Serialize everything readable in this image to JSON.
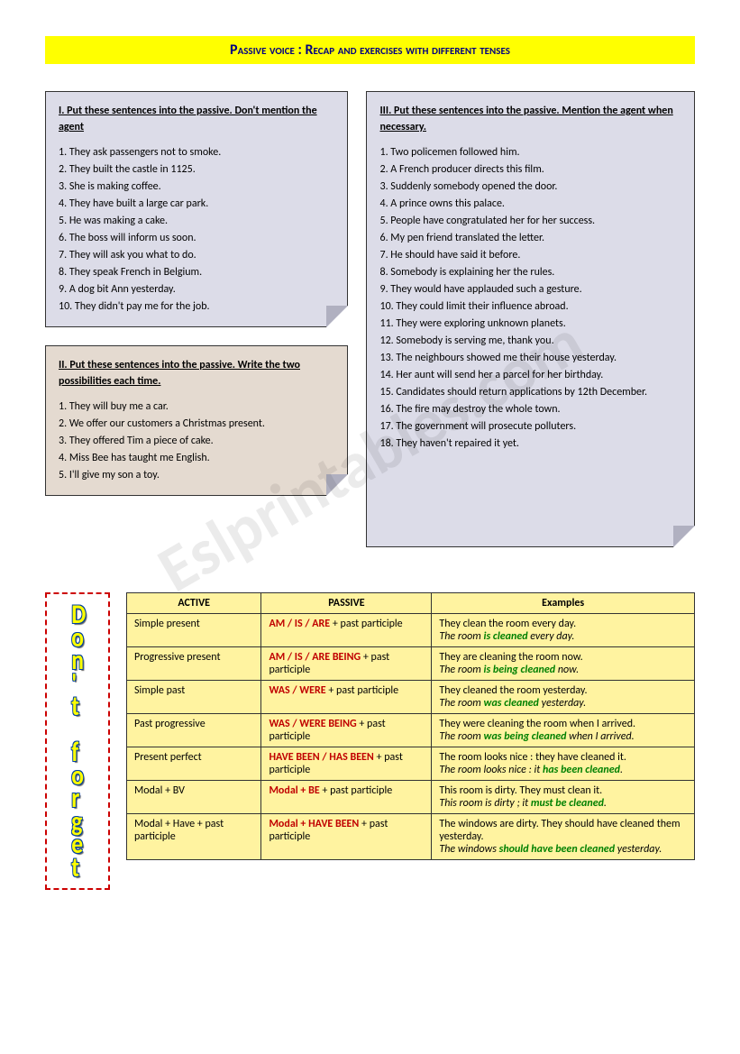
{
  "title": "Passive voice : Recap and exercises with different tenses",
  "watermark": "Eslprintables.com",
  "dont_forget": "Don't forget",
  "exercise1": {
    "header": "I. Put these sentences into the passive. Don't mention the agent",
    "items": [
      "1. They ask passengers not to smoke.",
      "2. They built the castle in 1125.",
      "3. She is making coffee.",
      "4. They have built a large car park.",
      "5. He was making a cake.",
      "6. The boss will inform us soon.",
      "7. They will ask you what to do.",
      "8. They speak French in Belgium.",
      "9. A dog bit Ann yesterday.",
      "10. They didn't pay me for the job."
    ]
  },
  "exercise2": {
    "header": "II. Put these sentences into the passive. Write the two possibilities each time.",
    "items": [
      "1. They will buy me a car.",
      "2. We offer our customers a Christmas present.",
      "3. They offered Tim a piece of cake.",
      "4. Miss Bee has taught me English.",
      "5. I'll give my son a toy."
    ]
  },
  "exercise3": {
    "header": "III. Put these sentences into the passive. Mention the agent when necessary.",
    "items": [
      "1. Two policemen followed him.",
      "2. A French producer directs this film.",
      "3. Suddenly somebody opened the door.",
      "4. A prince owns this palace.",
      "5. People have congratulated her for her success.",
      "6. My pen friend translated the letter.",
      "7. He should have said it before.",
      "8. Somebody is explaining her the rules.",
      "9. They would have applauded such a gesture.",
      "10. They could limit their influence abroad.",
      "11. They were exploring unknown planets.",
      "12. Somebody is serving me, thank you.",
      "13. The neighbours showed me their house yesterday.",
      "14. Her aunt will send her a parcel for her birthday.",
      "15. Candidates should return applications by 12th December.",
      "16. The fire may destroy the whole town.",
      "17. The government will prosecute polluters.",
      "18. They haven't repaired it yet."
    ]
  },
  "table": {
    "headers": {
      "active": "ACTIVE",
      "passive": "PASSIVE",
      "examples": "Examples"
    },
    "rows": [
      {
        "active": "Simple present",
        "passive_red": "AM / IS / ARE",
        "passive_rest": " + past participle",
        "ex_active": "They clean the room every day.",
        "ex_passive_pre": "The room ",
        "ex_passive_green": "is cleaned",
        "ex_passive_post": " every day."
      },
      {
        "active": "Progressive present",
        "passive_red": "AM / IS / ARE  BEING",
        "passive_rest": " + past participle",
        "ex_active": "They are cleaning the room now.",
        "ex_passive_pre": "The room ",
        "ex_passive_green": "is being cleaned",
        "ex_passive_post": " now."
      },
      {
        "active": "Simple past",
        "passive_red": "WAS / WERE",
        "passive_rest": " + past participle",
        "ex_active": "They cleaned the room yesterday.",
        "ex_passive_pre": "The room ",
        "ex_passive_green": "was cleaned",
        "ex_passive_post": " yesterday."
      },
      {
        "active": "Past progressive",
        "passive_red": "WAS / WERE  BEING",
        "passive_rest": " + past participle",
        "ex_active": "They were cleaning the room when I arrived.",
        "ex_passive_pre": "The room ",
        "ex_passive_green": "was being cleaned",
        "ex_passive_post": " when I arrived."
      },
      {
        "active": "Present perfect",
        "passive_red": "HAVE BEEN / HAS BEEN",
        "passive_rest": " + past participle",
        "ex_active": "The room looks nice : they have cleaned it.",
        "ex_passive_pre": "The room looks nice : it ",
        "ex_passive_green": "has been cleaned",
        "ex_passive_post": "."
      },
      {
        "active": "Modal + BV",
        "passive_red": "Modal + BE",
        "passive_rest": " + past participle",
        "ex_active": "This room is dirty. They must clean it.",
        "ex_passive_pre": "This room is dirty ; it ",
        "ex_passive_green": "must be cleaned",
        "ex_passive_post": "."
      },
      {
        "active": "Modal + Have + past participle",
        "passive_red": "Modal + HAVE BEEN",
        "passive_rest": "  + past participle",
        "ex_active": "The windows are dirty. They should have cleaned them yesterday.",
        "ex_passive_pre": "The windows ",
        "ex_passive_green": "should have been cleaned",
        "ex_passive_post": " yesterday."
      }
    ]
  }
}
